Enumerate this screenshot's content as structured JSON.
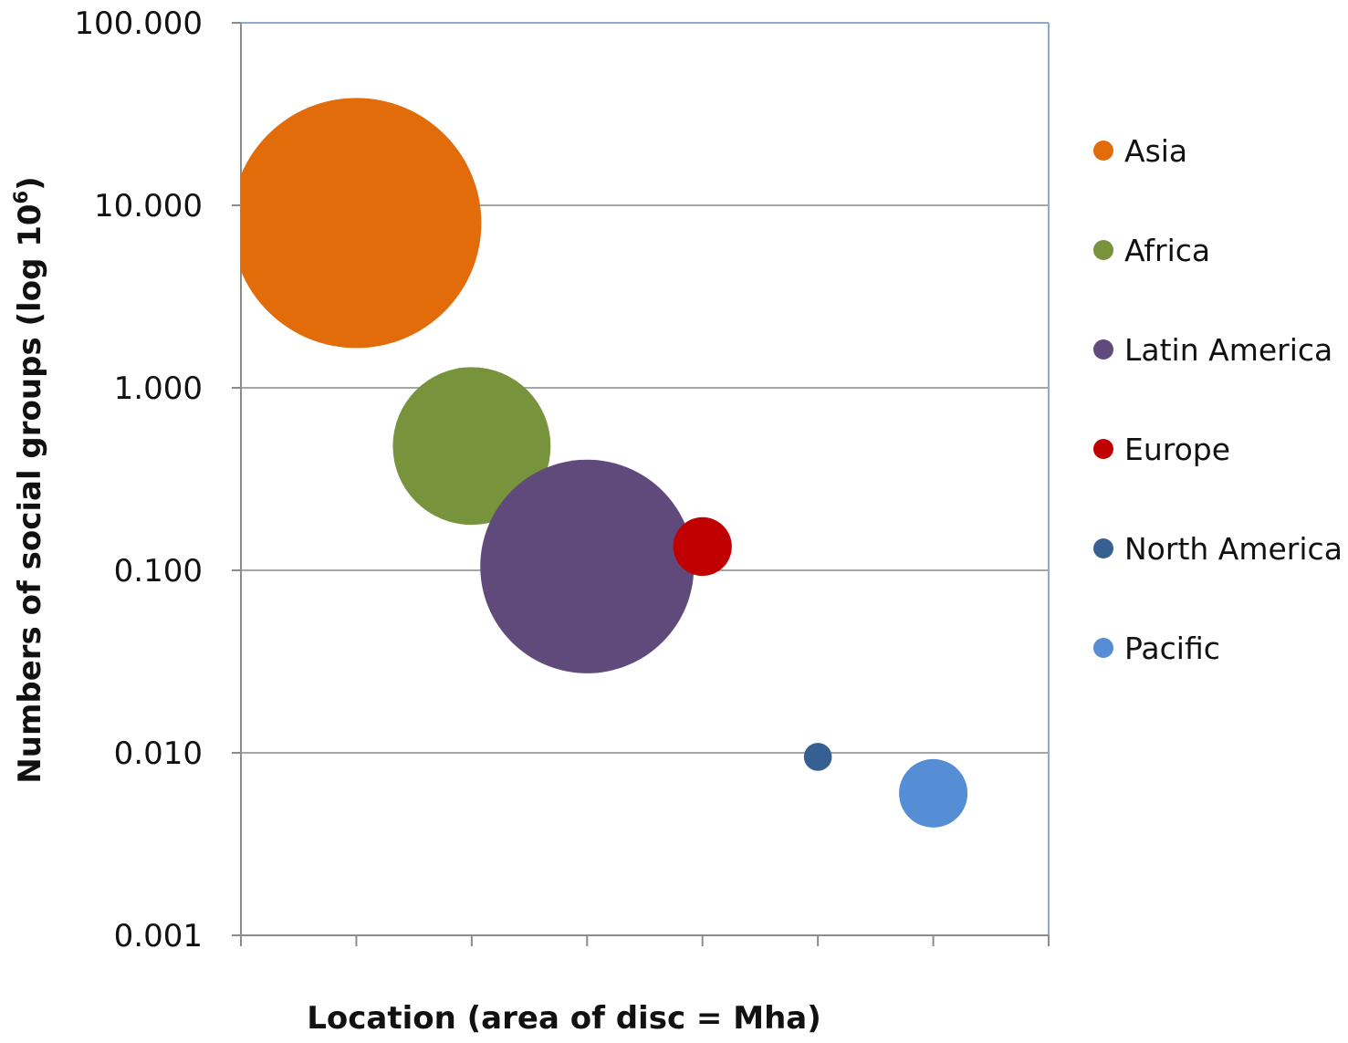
{
  "chart_data": {
    "type": "bubble",
    "x_axis": {
      "label": "Location (area of disc = Mha)",
      "categories": 7,
      "tick_labels": []
    },
    "y_axis": {
      "label_main": "Numbers of social groups (log 10",
      "label_sup": "6",
      "label_close": ")",
      "scale": "log",
      "ylim": [
        0.001,
        100
      ],
      "tick_labels": [
        "100.000",
        "10.000",
        "1.000",
        "0.100",
        "0.010",
        "0.001"
      ],
      "tick_values": [
        100,
        10,
        1,
        0.1,
        0.01,
        0.001
      ]
    },
    "grid": "horizontal",
    "legend_position": "right",
    "series": [
      {
        "name": "Asia",
        "x": 1,
        "y": 8.0,
        "relative_area": 1.0,
        "color": "#E36C0A"
      },
      {
        "name": "Africa",
        "x": 2,
        "y": 0.48,
        "relative_area": 0.398,
        "color": "#77933C"
      },
      {
        "name": "Latin America",
        "x": 3,
        "y": 0.105,
        "relative_area": 0.73,
        "color": "#604A7B"
      },
      {
        "name": "Europe",
        "x": 4,
        "y": 0.135,
        "relative_area": 0.055,
        "color": "#C00000"
      },
      {
        "name": "North America",
        "x": 5,
        "y": 0.0095,
        "relative_area": 0.0125,
        "color": "#366092"
      },
      {
        "name": "Pacific",
        "x": 6,
        "y": 0.006,
        "relative_area": 0.075,
        "color": "#558ED5"
      }
    ]
  }
}
